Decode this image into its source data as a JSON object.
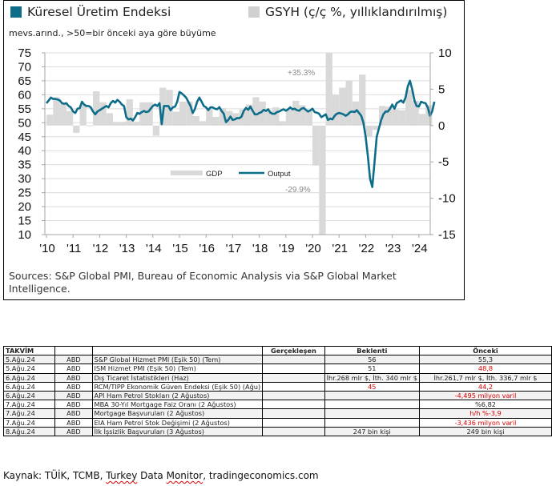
{
  "chart": {
    "legend_output_title": "Küresel Üretim Endeksi",
    "legend_gdp_title": "GSYH (ç/ç %, yıllıklandırılmış)",
    "subtitle": "mevs.arınd., >50=bir önceki aya göre büyüme",
    "source_note": "Sources: S&P Global PMI, Bureau of Economic Analysis via S&P Global Market Intelligence.",
    "colors": {
      "output": "#0e6e8a",
      "gdp": "#d9d9d9",
      "grid": "#dcdcdc",
      "annotation": "#8a8a8a"
    }
  },
  "chart_data": {
    "type": "bar+line",
    "title": "Küresel Üretim Endeksi / GSYH (ç/ç %, yıllıklandırılmış)",
    "subtitle": "mevs.arınd., >50=bir önceki aya göre büyüme",
    "x_tick_labels": [
      "'10",
      "'11",
      "'12",
      "'13",
      "'14",
      "'15",
      "'16",
      "'17",
      "'18",
      "'19",
      "'20",
      "'21",
      "'22",
      "'23",
      "'24"
    ],
    "x_range": [
      2010.0,
      2024.6
    ],
    "y_left": {
      "label": "",
      "range": [
        10,
        75
      ],
      "ticks": [
        75,
        70,
        65,
        60,
        55,
        50,
        45,
        40,
        35,
        30,
        25,
        20,
        15,
        10
      ]
    },
    "y_right": {
      "label": "",
      "range": [
        -15,
        10
      ],
      "ticks": [
        10,
        5,
        0,
        -5,
        -10,
        -15
      ]
    },
    "grid": true,
    "legend": {
      "position": "center-right",
      "entries": [
        "GDP",
        "Output"
      ]
    },
    "annotations": [
      {
        "text": "+35.3%",
        "x": 2020.6,
        "note": "GDP Q3 2020 (clipped)"
      },
      {
        "text": "-29.9%",
        "x": 2020.35,
        "note": "GDP Q2 2020 (clipped)"
      }
    ],
    "series": [
      {
        "name": "GDP",
        "type": "bar",
        "axis": "right",
        "x": [
          2010.0,
          2010.25,
          2010.5,
          2010.75,
          2011.0,
          2011.25,
          2011.5,
          2011.75,
          2012.0,
          2012.25,
          2012.5,
          2012.75,
          2013.0,
          2013.25,
          2013.5,
          2013.75,
          2014.0,
          2014.25,
          2014.5,
          2014.75,
          2015.0,
          2015.25,
          2015.5,
          2015.75,
          2016.0,
          2016.25,
          2016.5,
          2016.75,
          2017.0,
          2017.25,
          2017.5,
          2017.75,
          2018.0,
          2018.25,
          2018.5,
          2018.75,
          2019.0,
          2019.25,
          2019.5,
          2019.75,
          2020.0,
          2020.25,
          2020.5,
          2020.75,
          2021.0,
          2021.25,
          2021.5,
          2021.75,
          2022.0,
          2022.25,
          2022.5,
          2022.75,
          2023.0,
          2023.25,
          2023.5,
          2023.75,
          2024.0,
          2024.25
        ],
        "values": [
          1.5,
          3.9,
          3.0,
          2.0,
          -1.0,
          2.9,
          -0.1,
          4.7,
          3.2,
          1.7,
          0.5,
          0.5,
          3.6,
          0.5,
          3.2,
          3.2,
          -1.4,
          5.2,
          4.9,
          1.9,
          3.3,
          3.3,
          1.3,
          0.6,
          2.4,
          1.2,
          2.4,
          2.0,
          1.7,
          2.2,
          2.9,
          3.9,
          3.3,
          2.1,
          2.5,
          0.6,
          2.2,
          3.4,
          2.8,
          2.0,
          -5.5,
          -29.9,
          35.3,
          4.2,
          5.2,
          6.2,
          3.3,
          7.0,
          -1.6,
          -0.6,
          2.7,
          2.6,
          2.2,
          2.1,
          4.9,
          3.4,
          1.6,
          2.8
        ]
      },
      {
        "name": "Output",
        "type": "line",
        "axis": "left",
        "x_start": 2010.0,
        "x_step": 0.0833333,
        "values": [
          57,
          58,
          59,
          58.5,
          58.5,
          58.3,
          58,
          57,
          56.8,
          57,
          56,
          55.5,
          54,
          53.5,
          55,
          55.2,
          57.5,
          56.5,
          56,
          56,
          55.5,
          54,
          53,
          54,
          54.5,
          55,
          55.5,
          56,
          55.5,
          57,
          57.8,
          57.2,
          58.2,
          57.5,
          56.5,
          56,
          52,
          51.2,
          51.5,
          50.8,
          52,
          53.5,
          53.2,
          53.8,
          54.2,
          53.8,
          54,
          55,
          56,
          56.5,
          56,
          57,
          49.5,
          56,
          56,
          56,
          54.5,
          55.5,
          55.8,
          57.5,
          61,
          60.5,
          59.8,
          59,
          57.5,
          56,
          53.5,
          55,
          57.5,
          59,
          57.5,
          56,
          55.5,
          54.5,
          55.5,
          55.5,
          55,
          54.8,
          55.6,
          54.2,
          53.2,
          50.2,
          51,
          52.2,
          51,
          51.2,
          51.7,
          51.6,
          52.2,
          54.2,
          55.3,
          54.6,
          55.8,
          54.3,
          53,
          53,
          53.5,
          53.8,
          54.6,
          54.2,
          54.8,
          53.6,
          53.2,
          53.2,
          53.8,
          54,
          54.5,
          54.8,
          54.3,
          54.8,
          55.5,
          54.8,
          55,
          54.5,
          54.3,
          55,
          55.3,
          54.6,
          54,
          54.4,
          55,
          53.8,
          53.6,
          53.2,
          52,
          52.5,
          53,
          51,
          51.5,
          51.2,
          52.5,
          53.2,
          53.5,
          53.3,
          53,
          52.5,
          53,
          53.8,
          54,
          53.8,
          54.5,
          53.5,
          52.5,
          50,
          45,
          38,
          30,
          27,
          36,
          45,
          48,
          51,
          53,
          54,
          54,
          55,
          56.5,
          55,
          57,
          57.5,
          58,
          57.2,
          59,
          63,
          65,
          62,
          58,
          56,
          55.8,
          57.5,
          57.2,
          57,
          55.5,
          52.5,
          54,
          57.5,
          56,
          54.5,
          53,
          52.5,
          49.5,
          47,
          49.5,
          49,
          48,
          47,
          48,
          48,
          49.5,
          51,
          52,
          52.5,
          53,
          52,
          51,
          50,
          50.1,
          50.6,
          50.7,
          50.8,
          51.2,
          51.8,
          51.7,
          51.2,
          53,
          53.4,
          53.5
        ]
      }
    ]
  },
  "table": {
    "header": [
      "TAKVİM",
      "",
      "",
      "Gerçekleşen",
      "Beklenti",
      "Önceki"
    ],
    "rows": [
      {
        "date": "5.Ağu.24",
        "country": "ABD",
        "event": "S&P Global Hizmet PMI (Eşik 50) (Tem)",
        "actual": "",
        "forecast": "56",
        "previous": "55,3",
        "previous_red": false,
        "forecast_red": false
      },
      {
        "date": "5.Ağu.24",
        "country": "ABD",
        "event": "ISM Hizmet PMI (Eşik 50) (Tem)",
        "actual": "",
        "forecast": "51",
        "previous": "48,8",
        "previous_red": true,
        "forecast_red": false
      },
      {
        "date": "6.Ağu.24",
        "country": "ABD",
        "event": "Dış Ticaret İstatistikleri (Haz)",
        "actual": "",
        "forecast": "İhr.268 mlr $, İth. 340 mlr $",
        "previous": "İhr.261,7 mlr $, İth. 336,7 mlr $",
        "previous_red": false,
        "forecast_red": false
      },
      {
        "date": "6.Ağu.24",
        "country": "ABD",
        "event": "RCM/TIPP Ekonomik Güven Endeksi (Eşik 50) (Ağu)",
        "actual": "",
        "forecast": "45",
        "previous": "44,2",
        "previous_red": true,
        "forecast_red": true
      },
      {
        "date": "6.Ağu.24",
        "country": "ABD",
        "event": "API Ham Petrol Stokları (2 Ağustos)",
        "actual": "",
        "forecast": "",
        "previous": "-4,495 milyon varil",
        "previous_red": true,
        "forecast_red": false
      },
      {
        "date": "7.Ağu.24",
        "country": "ABD",
        "event": "MBA 30-Yıl Mortgage Faiz Oranı (2 Ağustos)",
        "actual": "",
        "forecast": "",
        "previous": "%6,82",
        "previous_red": false,
        "forecast_red": false
      },
      {
        "date": "7.Ağu.24",
        "country": "ABD",
        "event": "Mortgage Başvuruları (2 Ağustos)",
        "actual": "",
        "forecast": "",
        "previous": "h/h %-3,9",
        "previous_red": true,
        "forecast_red": false
      },
      {
        "date": "7.Ağu.24",
        "country": "ABD",
        "event": "EIA Ham Petrol Stok Değişimi (2 Ağustos)",
        "actual": "",
        "forecast": "",
        "previous": "-3,436 milyon varil",
        "previous_red": true,
        "forecast_red": false
      },
      {
        "date": "8.Ağu.24",
        "country": "ABD",
        "event": "İlk İşsizlik Başvuruları (3 Ağustos)",
        "actual": "",
        "forecast": "247 bin kişi",
        "previous": "249 bin kişi",
        "previous_red": false,
        "forecast_red": false
      }
    ]
  },
  "footer": {
    "prefix": "Kaynak: TÜİK, TCMB, ",
    "flagged_1": "Turkey",
    "mid": " Data ",
    "flagged_2": "Monitor",
    "suffix": ", tradingeconomics.com"
  }
}
